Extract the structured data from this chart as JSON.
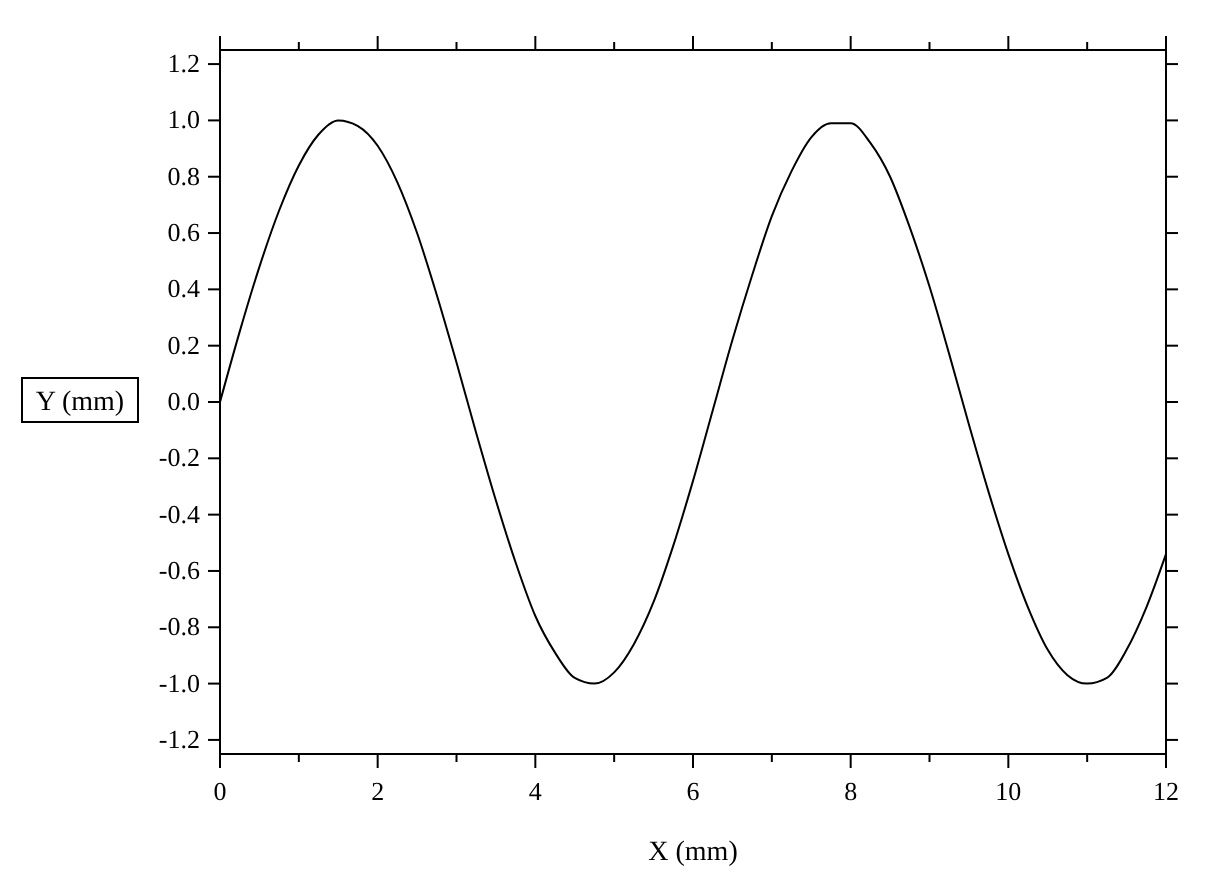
{
  "chart_data": {
    "type": "line",
    "xlabel": "X (mm)",
    "ylabel": "Y (mm)",
    "x": [
      0,
      0.25,
      0.5,
      0.75,
      1,
      1.25,
      1.5,
      1.75,
      2,
      2.25,
      2.5,
      2.75,
      3,
      3.25,
      3.5,
      3.75,
      4,
      4.25,
      4.5,
      4.75,
      5,
      5.25,
      5.5,
      5.75,
      6,
      6.25,
      6.5,
      6.75,
      7,
      7.25,
      7.5,
      7.75,
      8,
      8.25,
      8.5,
      8.75,
      9,
      9.25,
      9.5,
      9.75,
      10,
      10.25,
      10.5,
      10.75,
      11,
      11.25,
      11.5,
      11.75,
      12
    ],
    "series": [
      {
        "color": "#000000",
        "values": [
          0,
          0.25,
          0.48,
          0.68,
          0.84,
          0.95,
          1.0,
          0.98,
          0.91,
          0.78,
          0.6,
          0.38,
          0.14,
          -0.11,
          -0.35,
          -0.57,
          -0.76,
          -0.89,
          -0.98,
          -1.0,
          -0.96,
          -0.86,
          -0.71,
          -0.51,
          -0.28,
          -0.03,
          0.22,
          0.45,
          0.66,
          0.82,
          0.94,
          0.99,
          0.99,
          0.92,
          0.8,
          0.62,
          0.41,
          0.17,
          -0.08,
          -0.32,
          -0.54,
          -0.73,
          -0.88,
          -0.97,
          -1.0,
          -0.98,
          -0.88,
          -0.73,
          -0.54
        ]
      }
    ],
    "xlim": [
      0,
      12
    ],
    "xticks": [
      0,
      {
        "value": 1,
        "label": null
      },
      2,
      {
        "value": 3,
        "label": null
      },
      4,
      {
        "value": 5,
        "label": null
      },
      6,
      {
        "value": 7,
        "label": null
      },
      8,
      {
        "value": 9,
        "label": null
      },
      10,
      {
        "value": 11,
        "label": null
      },
      12
    ],
    "ylim": [
      -1.25,
      1.25
    ],
    "yticks": [
      {
        "value": -1.2,
        "label": "-1.2"
      },
      {
        "value": -1.0,
        "label": "-1.0"
      },
      {
        "value": -0.8,
        "label": "-0.8"
      },
      {
        "value": -0.6,
        "label": "-0.6"
      },
      {
        "value": -0.4,
        "label": "-0.4"
      },
      {
        "value": -0.2,
        "label": "-0.2"
      },
      {
        "value": 0,
        "label": "0.0"
      },
      {
        "value": 0.2,
        "label": "0.2"
      },
      {
        "value": 0.4,
        "label": "0.4"
      },
      {
        "value": 0.6,
        "label": "0.6"
      },
      {
        "value": 0.8,
        "label": "0.8"
      },
      {
        "value": 1.0,
        "label": "1.0"
      },
      {
        "value": 1.2,
        "label": "1.2"
      }
    ],
    "grid": false,
    "marker": "none",
    "line_style": "solid"
  }
}
